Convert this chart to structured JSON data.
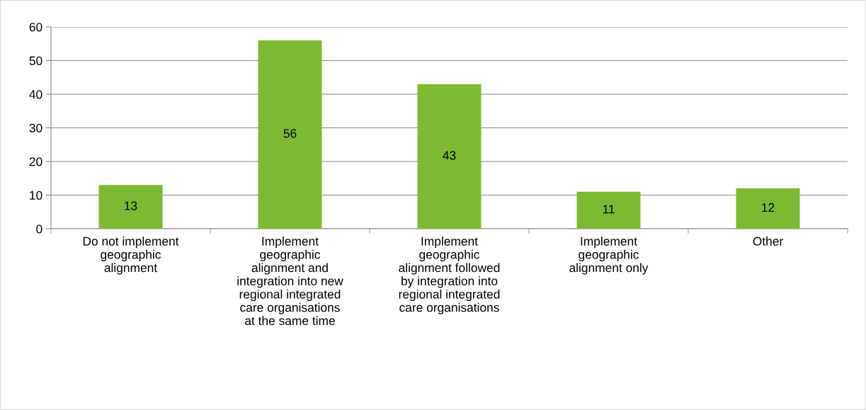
{
  "chart_data": {
    "type": "bar",
    "categories": [
      "Do not implement\ngeographic\nalignment",
      "Implement\ngeographic\nalignment and\nintegration into new\nregional integrated\ncare organisations\nat the same time",
      "Implement\ngeographic\nalignment followed\nby integration into\nregional integrated\ncare organisations",
      "Implement\ngeographic\nalignment only",
      "Other"
    ],
    "values": [
      13,
      56,
      43,
      11,
      12
    ],
    "color": "#7cba32",
    "ylim": [
      0,
      60
    ],
    "yticks": [
      0,
      10,
      20,
      30,
      40,
      50,
      60
    ],
    "grid": "y",
    "data_labels": true
  }
}
